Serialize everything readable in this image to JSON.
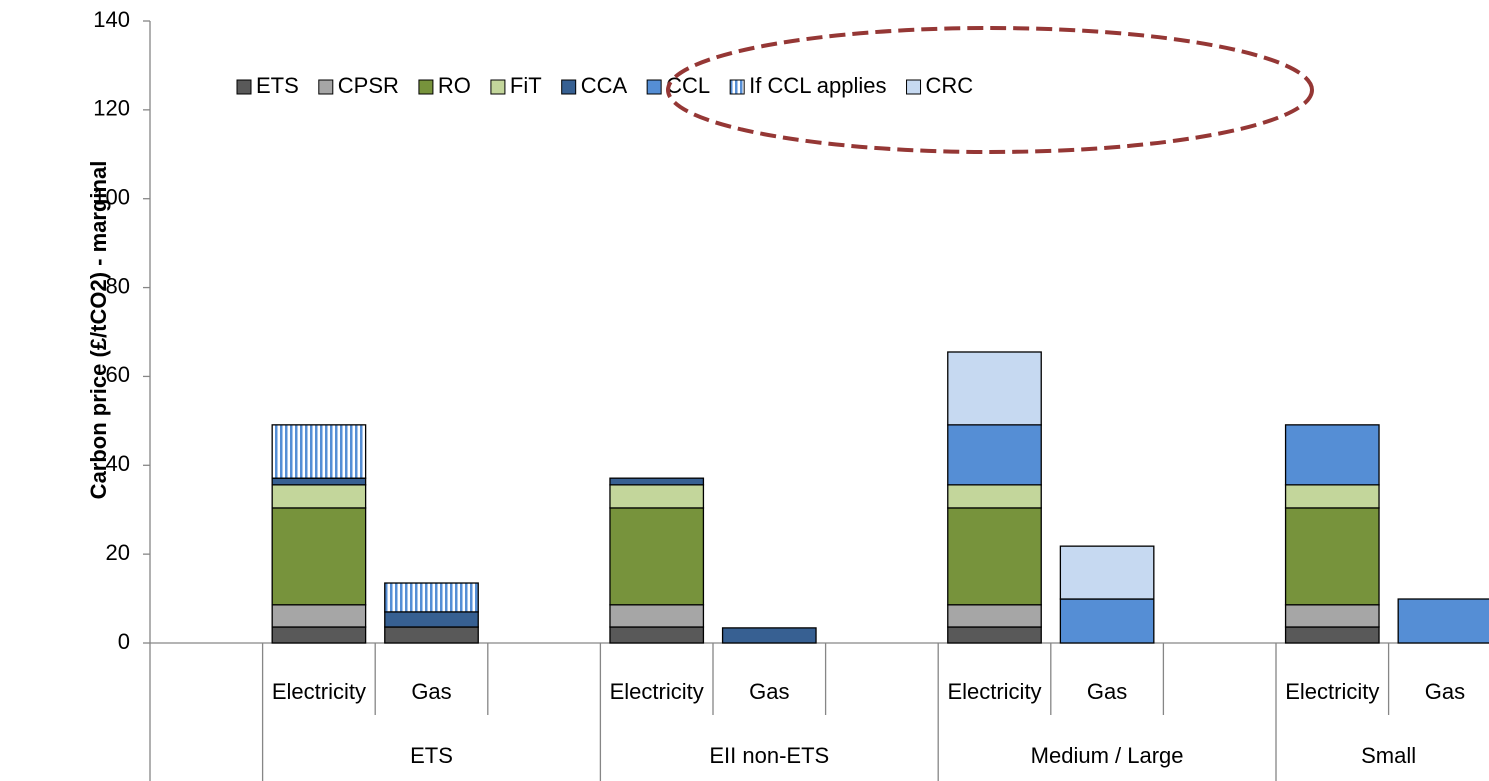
{
  "chart_data": {
    "type": "stacked_bar",
    "y_label": "Carbon price (£/tCO2) -  marginal",
    "categories": [
      null,
      "Electricity",
      "Gas",
      null,
      "Electricity",
      "Gas",
      null,
      "Electricity",
      "Gas",
      null,
      "Electricity",
      "Gas"
    ],
    "groups": [
      {
        "name": null,
        "size": 1
      },
      {
        "name": "ETS",
        "size": 3
      },
      {
        "name": "EII non-ETS",
        "size": 3
      },
      {
        "name": "Medium / Large",
        "size": 3
      },
      {
        "name": "Small",
        "size": 2
      }
    ],
    "series": [
      {
        "name": "ETS",
        "color": "#595959",
        "values": [
          null,
          3.6,
          3.6,
          null,
          3.6,
          null,
          null,
          3.6,
          null,
          null,
          3.6,
          null
        ]
      },
      {
        "name": "CPSR",
        "color": "#a6a6a6",
        "values": [
          null,
          5.0,
          null,
          null,
          5.0,
          null,
          null,
          5.0,
          null,
          null,
          5.0,
          null
        ]
      },
      {
        "name": "RO",
        "color": "#77933c",
        "values": [
          null,
          21.8,
          null,
          null,
          21.8,
          null,
          null,
          21.8,
          null,
          null,
          21.8,
          null
        ]
      },
      {
        "name": "FiT",
        "color": "#c3d69b",
        "values": [
          null,
          5.2,
          null,
          null,
          5.2,
          null,
          null,
          5.2,
          null,
          null,
          5.2,
          null
        ]
      },
      {
        "name": "CCA",
        "color": "#376092",
        "values": [
          null,
          1.5,
          3.4,
          null,
          1.5,
          3.4,
          null,
          null,
          null,
          null,
          null,
          null
        ]
      },
      {
        "name": "CCL",
        "color": "#558ed5",
        "values": [
          null,
          null,
          null,
          null,
          null,
          null,
          null,
          13.5,
          9.9,
          null,
          13.5,
          9.9
        ]
      },
      {
        "name": "If CCL applies",
        "color": "#558ed5",
        "hatch": true,
        "values": [
          null,
          12.0,
          6.5,
          null,
          null,
          null,
          null,
          null,
          null,
          null,
          null,
          null
        ]
      },
      {
        "name": "CRC",
        "color": "#c6d9f1",
        "values": [
          null,
          null,
          null,
          null,
          null,
          null,
          null,
          16.4,
          11.9,
          null,
          null,
          null
        ]
      }
    ],
    "ylim": [
      0,
      140
    ],
    "yticks": [
      0,
      20,
      40,
      60,
      80,
      100,
      120,
      140
    ],
    "grid": false
  }
}
